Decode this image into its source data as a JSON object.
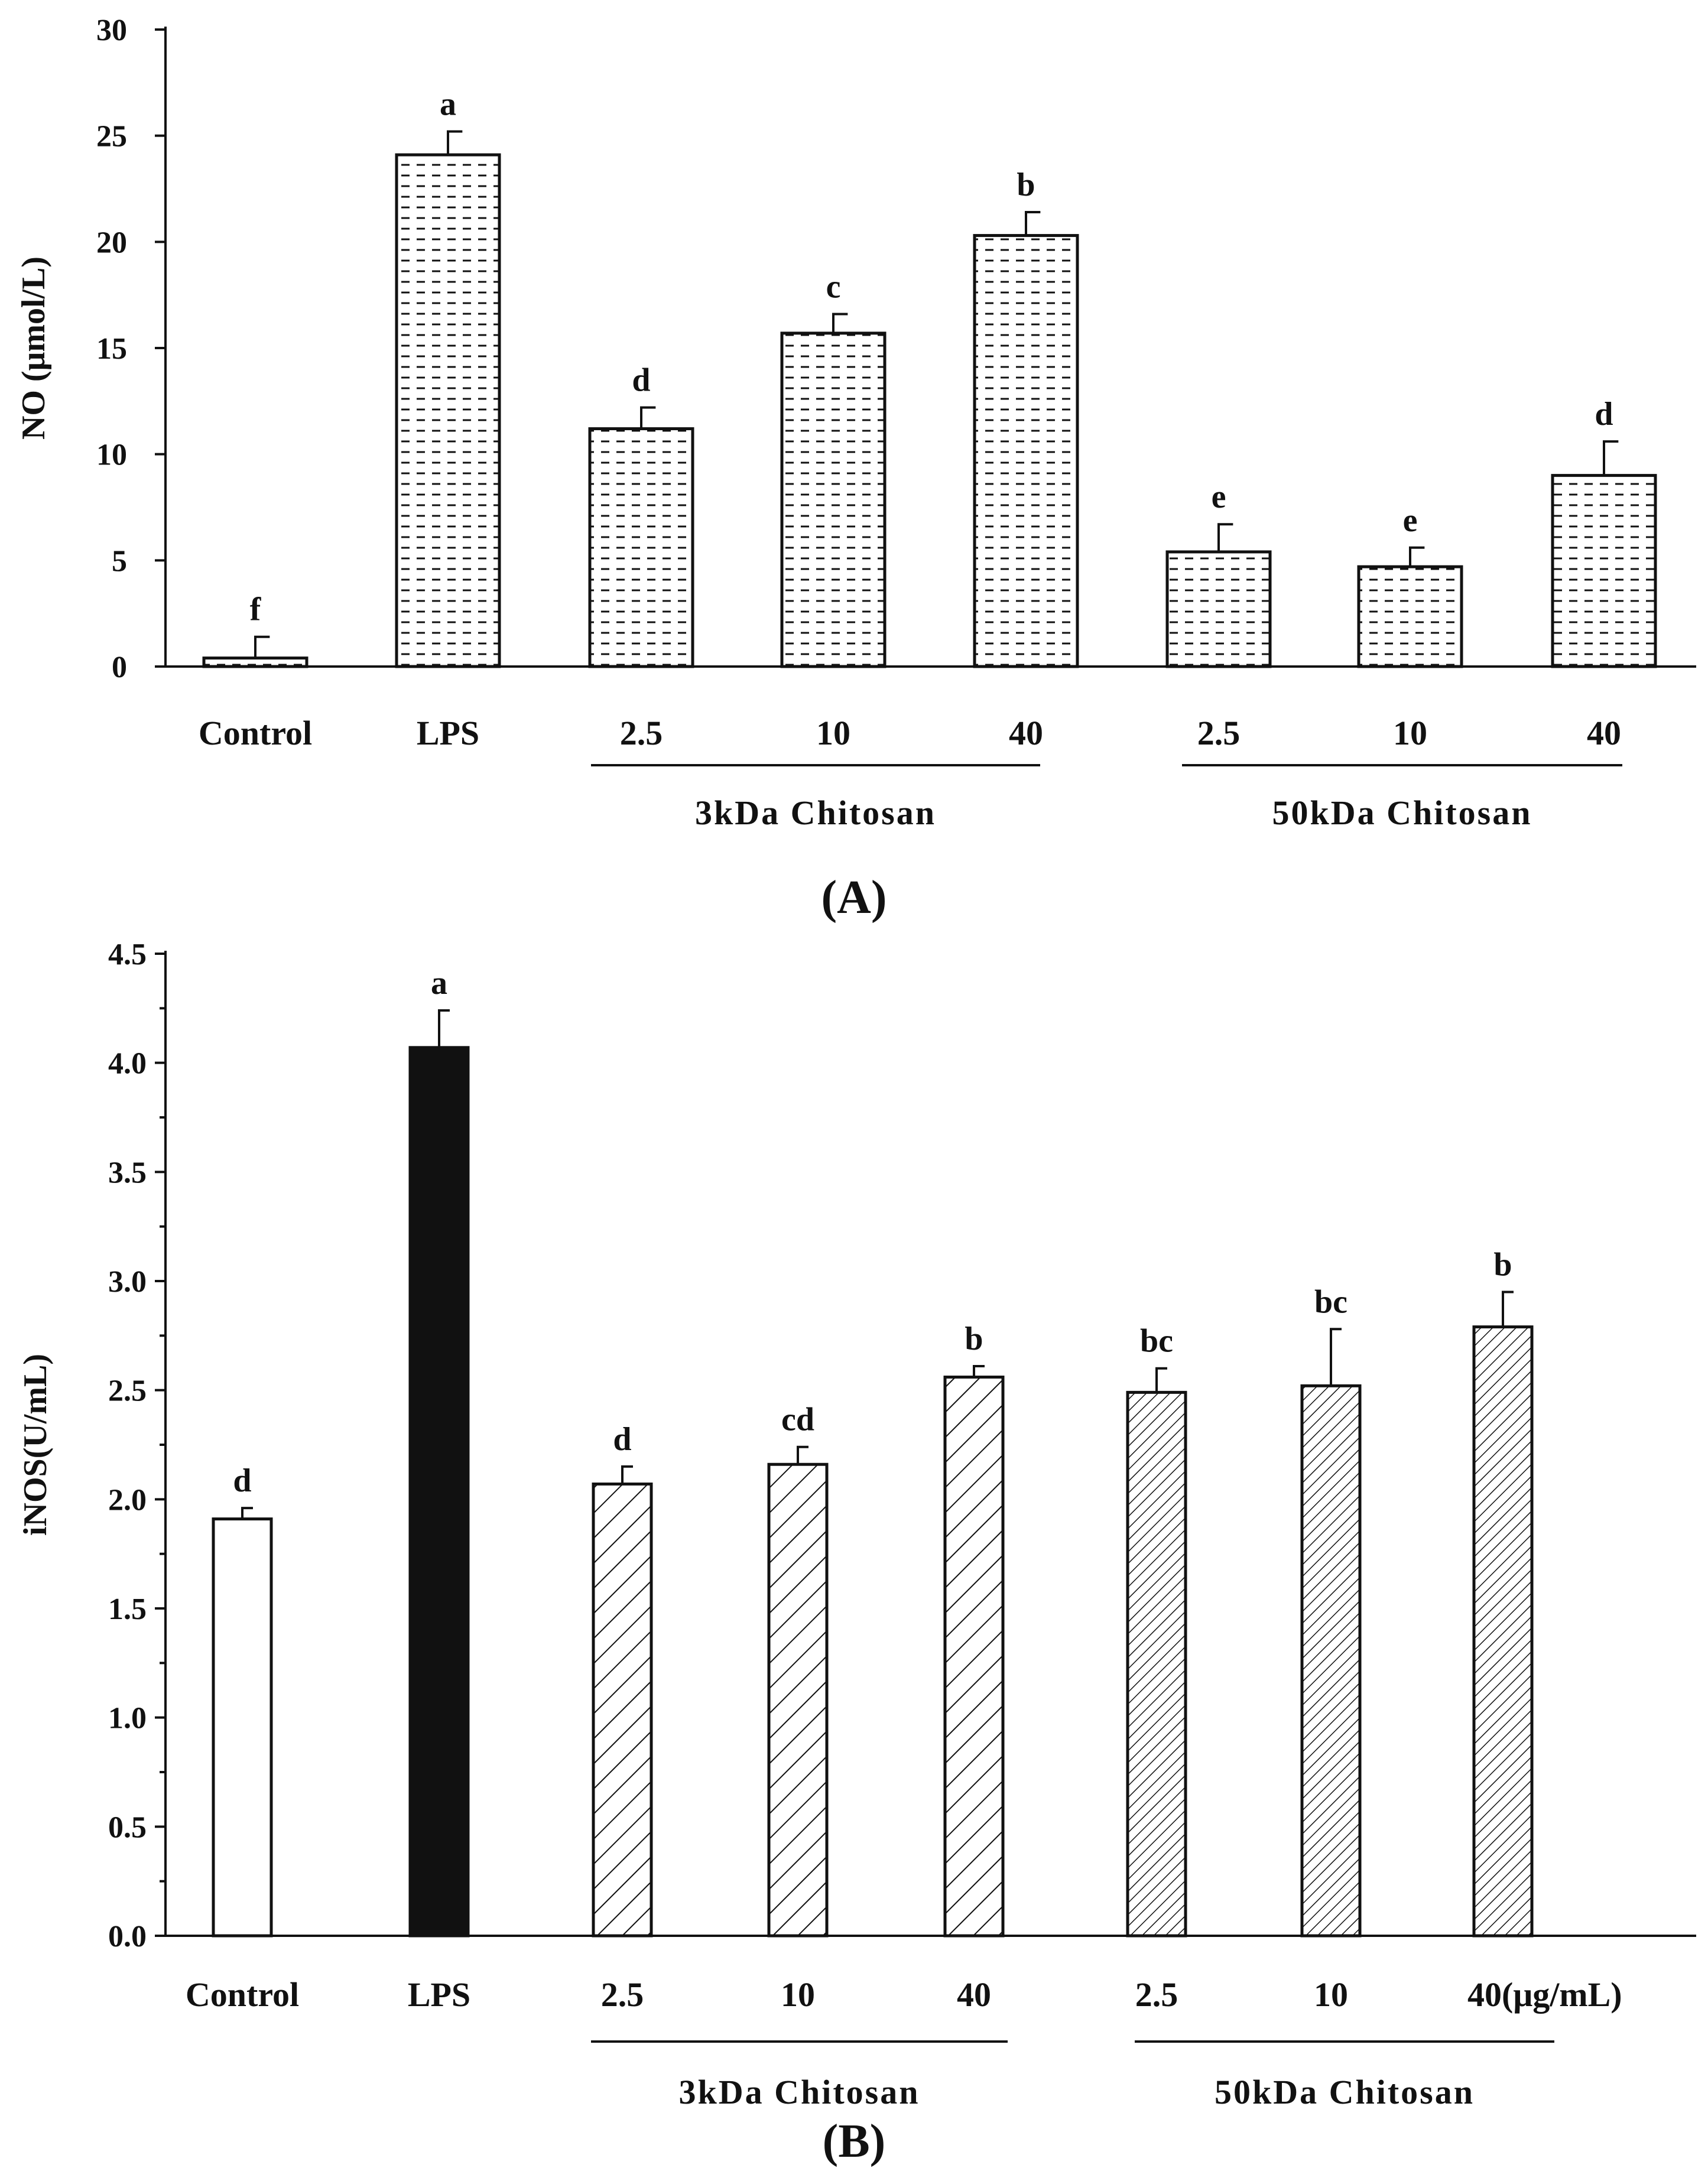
{
  "chart_data": [
    {
      "type": "bar",
      "panel": "(A)",
      "panel_label": "A",
      "ylabel": "NO (μmol/L)",
      "ylim": [
        0,
        30
      ],
      "yticks": [
        0,
        5,
        10,
        15,
        20,
        25,
        30
      ],
      "categories": [
        "Control",
        "LPS",
        "2.5",
        "10",
        "40",
        "2.5",
        "10",
        "40"
      ],
      "values": [
        0.4,
        24.1,
        11.2,
        15.7,
        20.3,
        5.4,
        4.7,
        9.0
      ],
      "errors": [
        1.0,
        1.1,
        1.0,
        0.9,
        1.1,
        1.3,
        0.9,
        1.6
      ],
      "significance": [
        "f",
        "a",
        "d",
        "c",
        "b",
        "e",
        "e",
        "d"
      ],
      "fills": [
        "dashes",
        "dashes",
        "dashes",
        "dashes",
        "dashes",
        "dashes",
        "dashes",
        "dashes"
      ],
      "groups": [
        {
          "label": "3kDa Chitosan",
          "from": 2,
          "to": 4
        },
        {
          "label": "50kDa Chitosan",
          "from": 5,
          "to": 7
        }
      ]
    },
    {
      "type": "bar",
      "panel": "(B)",
      "panel_label": "B",
      "ylabel": "iNOS(U/mL)",
      "ylim": [
        0,
        4.5
      ],
      "yticks": [
        "0.0",
        "0.5",
        "1.0",
        "1.5",
        "2.0",
        "2.5",
        "3.0",
        "3.5",
        "4.0",
        "4.5"
      ],
      "categories": [
        "Control",
        "LPS",
        "2.5",
        "10",
        "40",
        "2.5",
        "10",
        "40(μg/mL)"
      ],
      "values": [
        1.91,
        4.07,
        2.07,
        2.16,
        2.56,
        2.49,
        2.52,
        2.79
      ],
      "errors": [
        0.05,
        0.17,
        0.08,
        0.08,
        0.05,
        0.11,
        0.26,
        0.16
      ],
      "significance": [
        "d",
        "a",
        "d",
        "cd",
        "b",
        "bc",
        "bc",
        "b"
      ],
      "fills": [
        "white",
        "black",
        "hatch",
        "hatch",
        "hatch",
        "dense-hatch",
        "dense-hatch",
        "dense-hatch"
      ],
      "groups": [
        {
          "label": "3kDa Chitosan",
          "from": 2,
          "to": 4
        },
        {
          "label": "50kDa Chitosan",
          "from": 5,
          "to": 7
        }
      ]
    }
  ]
}
